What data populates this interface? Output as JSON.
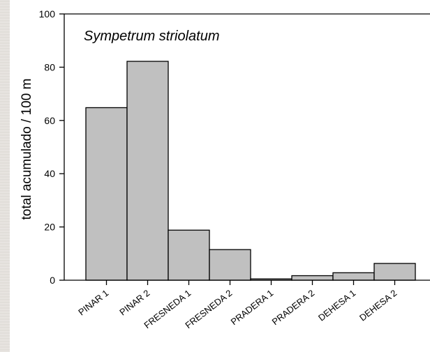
{
  "chart_data": {
    "type": "bar",
    "title": "Sympetrum striolatum",
    "ylabel": "total acumulado / 100 m",
    "xlabel": "",
    "ylim": [
      0,
      100
    ],
    "yticks": [
      "0",
      "20",
      "40",
      "60",
      "80",
      "100"
    ],
    "categories": [
      "PINAR 1",
      "PINAR 2",
      "FRESNEDA 1",
      "FRESNEDA 2",
      "PRADERA 1",
      "PRADERA 2",
      "DEHESA 1",
      "DEHESA 2"
    ],
    "values": [
      64.8,
      82.2,
      18.8,
      11.5,
      0.5,
      1.7,
      2.8,
      6.3
    ],
    "grid": false,
    "colors": {
      "bar_fill": "#c0c0c0",
      "bar_stroke": "#000000"
    }
  }
}
